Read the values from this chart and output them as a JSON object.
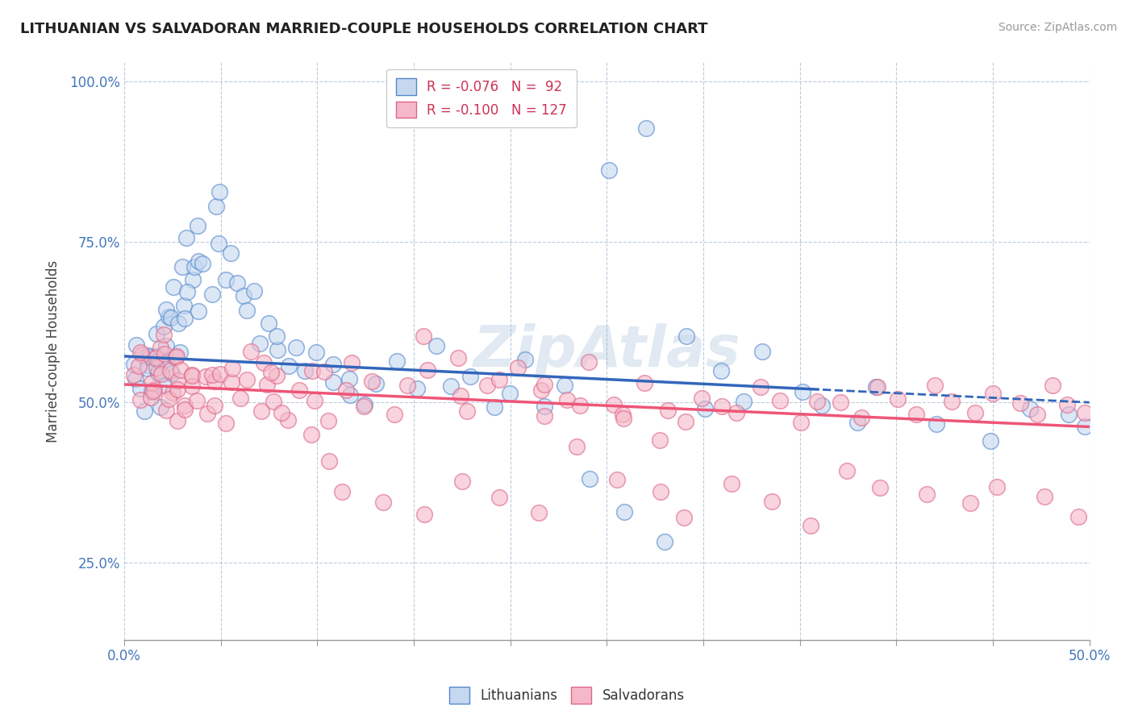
{
  "title": "LITHUANIAN VS SALVADORAN MARRIED-COUPLE HOUSEHOLDS CORRELATION CHART",
  "source": "Source: ZipAtlas.com",
  "ylabel": "Married-couple Households",
  "xlim": [
    0.0,
    0.5
  ],
  "ylim": [
    0.13,
    1.03
  ],
  "xticks": [
    0.0,
    0.05,
    0.1,
    0.15,
    0.2,
    0.25,
    0.3,
    0.35,
    0.4,
    0.45,
    0.5
  ],
  "yticks": [
    0.25,
    0.5,
    0.75,
    1.0
  ],
  "xticklabels": [
    "0.0%",
    "",
    "",
    "",
    "",
    "",
    "",
    "",
    "",
    "",
    "50.0%"
  ],
  "yticklabels": [
    "25.0%",
    "50.0%",
    "75.0%",
    "100.0%"
  ],
  "legend_r1": "R = -0.076",
  "legend_n1": "N =  92",
  "legend_r2": "R = -0.100",
  "legend_n2": "N = 127",
  "color_blue_fill": "#c5d8f0",
  "color_blue_edge": "#5588cc",
  "color_pink_fill": "#f5b8c8",
  "color_pink_edge": "#dd6688",
  "color_blue_line": "#3366bb",
  "color_pink_line": "#ee5577",
  "watermark": "ZipAtlas",
  "blue_line_solid_end": 0.36,
  "blue_scatter_x": [
    0.005,
    0.007,
    0.009,
    0.01,
    0.01,
    0.011,
    0.012,
    0.013,
    0.014,
    0.015,
    0.015,
    0.016,
    0.017,
    0.018,
    0.018,
    0.019,
    0.02,
    0.02,
    0.021,
    0.022,
    0.022,
    0.023,
    0.024,
    0.025,
    0.025,
    0.026,
    0.027,
    0.028,
    0.029,
    0.03,
    0.031,
    0.032,
    0.033,
    0.034,
    0.035,
    0.036,
    0.038,
    0.04,
    0.042,
    0.044,
    0.046,
    0.048,
    0.05,
    0.052,
    0.055,
    0.058,
    0.06,
    0.063,
    0.066,
    0.07,
    0.074,
    0.078,
    0.082,
    0.086,
    0.09,
    0.095,
    0.1,
    0.105,
    0.11,
    0.115,
    0.12,
    0.125,
    0.13,
    0.14,
    0.15,
    0.16,
    0.17,
    0.18,
    0.19,
    0.2,
    0.21,
    0.22,
    0.23,
    0.25,
    0.27,
    0.29,
    0.31,
    0.33,
    0.36,
    0.39,
    0.42,
    0.45,
    0.47,
    0.49,
    0.5,
    0.24,
    0.26,
    0.28,
    0.3,
    0.32,
    0.35,
    0.38
  ],
  "blue_scatter_y": [
    0.54,
    0.56,
    0.5,
    0.57,
    0.6,
    0.53,
    0.55,
    0.58,
    0.52,
    0.56,
    0.61,
    0.54,
    0.58,
    0.62,
    0.5,
    0.55,
    0.52,
    0.58,
    0.63,
    0.56,
    0.65,
    0.6,
    0.57,
    0.55,
    0.63,
    0.68,
    0.61,
    0.58,
    0.72,
    0.65,
    0.69,
    0.62,
    0.75,
    0.67,
    0.7,
    0.73,
    0.78,
    0.65,
    0.72,
    0.68,
    0.8,
    0.83,
    0.76,
    0.7,
    0.73,
    0.68,
    0.65,
    0.62,
    0.67,
    0.6,
    0.64,
    0.58,
    0.61,
    0.56,
    0.59,
    0.55,
    0.57,
    0.53,
    0.56,
    0.52,
    0.55,
    0.5,
    0.53,
    0.55,
    0.52,
    0.58,
    0.53,
    0.55,
    0.5,
    0.52,
    0.55,
    0.5,
    0.52,
    0.87,
    0.92,
    0.6,
    0.55,
    0.58,
    0.5,
    0.52,
    0.47,
    0.45,
    0.5,
    0.48,
    0.45,
    0.38,
    0.33,
    0.28,
    0.48,
    0.5,
    0.52,
    0.46
  ],
  "pink_scatter_x": [
    0.004,
    0.006,
    0.008,
    0.01,
    0.011,
    0.012,
    0.013,
    0.014,
    0.015,
    0.016,
    0.017,
    0.018,
    0.019,
    0.02,
    0.021,
    0.022,
    0.023,
    0.024,
    0.025,
    0.026,
    0.027,
    0.028,
    0.029,
    0.03,
    0.031,
    0.032,
    0.033,
    0.034,
    0.035,
    0.036,
    0.038,
    0.04,
    0.042,
    0.044,
    0.046,
    0.048,
    0.05,
    0.052,
    0.055,
    0.058,
    0.06,
    0.063,
    0.066,
    0.07,
    0.074,
    0.078,
    0.082,
    0.086,
    0.09,
    0.095,
    0.1,
    0.105,
    0.11,
    0.115,
    0.12,
    0.125,
    0.13,
    0.14,
    0.15,
    0.16,
    0.17,
    0.18,
    0.19,
    0.2,
    0.21,
    0.22,
    0.23,
    0.24,
    0.25,
    0.26,
    0.27,
    0.28,
    0.29,
    0.3,
    0.31,
    0.32,
    0.33,
    0.34,
    0.35,
    0.36,
    0.37,
    0.38,
    0.39,
    0.4,
    0.41,
    0.42,
    0.43,
    0.44,
    0.45,
    0.46,
    0.47,
    0.48,
    0.49,
    0.5,
    0.505,
    0.065,
    0.075,
    0.085,
    0.095,
    0.105,
    0.115,
    0.135,
    0.155,
    0.175,
    0.195,
    0.215,
    0.235,
    0.255,
    0.275,
    0.295,
    0.315,
    0.335,
    0.355,
    0.375,
    0.395,
    0.415,
    0.435,
    0.455,
    0.475,
    0.495,
    0.155,
    0.175,
    0.195,
    0.215,
    0.235,
    0.255,
    0.275
  ],
  "pink_scatter_y": [
    0.54,
    0.56,
    0.5,
    0.55,
    0.58,
    0.52,
    0.56,
    0.5,
    0.54,
    0.58,
    0.52,
    0.56,
    0.6,
    0.53,
    0.57,
    0.5,
    0.55,
    0.58,
    0.52,
    0.56,
    0.5,
    0.54,
    0.48,
    0.52,
    0.56,
    0.5,
    0.54,
    0.48,
    0.52,
    0.56,
    0.5,
    0.54,
    0.48,
    0.52,
    0.56,
    0.5,
    0.54,
    0.48,
    0.52,
    0.55,
    0.5,
    0.54,
    0.48,
    0.52,
    0.56,
    0.5,
    0.54,
    0.48,
    0.52,
    0.55,
    0.5,
    0.54,
    0.48,
    0.52,
    0.55,
    0.5,
    0.54,
    0.48,
    0.52,
    0.55,
    0.5,
    0.48,
    0.52,
    0.55,
    0.5,
    0.48,
    0.52,
    0.55,
    0.5,
    0.48,
    0.52,
    0.5,
    0.48,
    0.52,
    0.5,
    0.48,
    0.52,
    0.5,
    0.48,
    0.52,
    0.5,
    0.48,
    0.52,
    0.5,
    0.48,
    0.52,
    0.5,
    0.48,
    0.52,
    0.5,
    0.48,
    0.52,
    0.5,
    0.48,
    0.52,
    0.58,
    0.54,
    0.5,
    0.46,
    0.42,
    0.38,
    0.35,
    0.32,
    0.38,
    0.35,
    0.32,
    0.42,
    0.38,
    0.35,
    0.32,
    0.38,
    0.35,
    0.32,
    0.4,
    0.37,
    0.35,
    0.33,
    0.38,
    0.35,
    0.33,
    0.6,
    0.57,
    0.55,
    0.52,
    0.5,
    0.48,
    0.45
  ]
}
